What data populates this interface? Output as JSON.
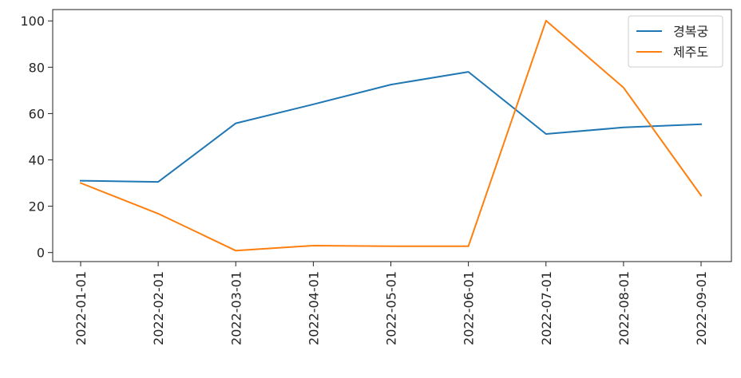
{
  "chart_data": {
    "type": "line",
    "title": "",
    "xlabel": "",
    "ylabel": "",
    "x": [
      "2022-01-01",
      "2022-02-01",
      "2022-03-01",
      "2022-04-01",
      "2022-05-01",
      "2022-06-01",
      "2022-07-01",
      "2022-08-01",
      "2022-09-01"
    ],
    "yticks": [
      0,
      20,
      40,
      60,
      80,
      100
    ],
    "ylim": [
      -3.9,
      104.9
    ],
    "grid": false,
    "legend_position": "top-right",
    "series": [
      {
        "name": "경복궁",
        "color": "#1f77b4",
        "values": [
          31,
          30.5,
          55.8,
          64,
          72.5,
          78,
          51.2,
          54,
          55.4
        ]
      },
      {
        "name": "제주도",
        "color": "#ff7f0e",
        "values": [
          30,
          16.8,
          0.8,
          3,
          2.7,
          2.7,
          100.1,
          71.2,
          24.6
        ]
      }
    ]
  }
}
